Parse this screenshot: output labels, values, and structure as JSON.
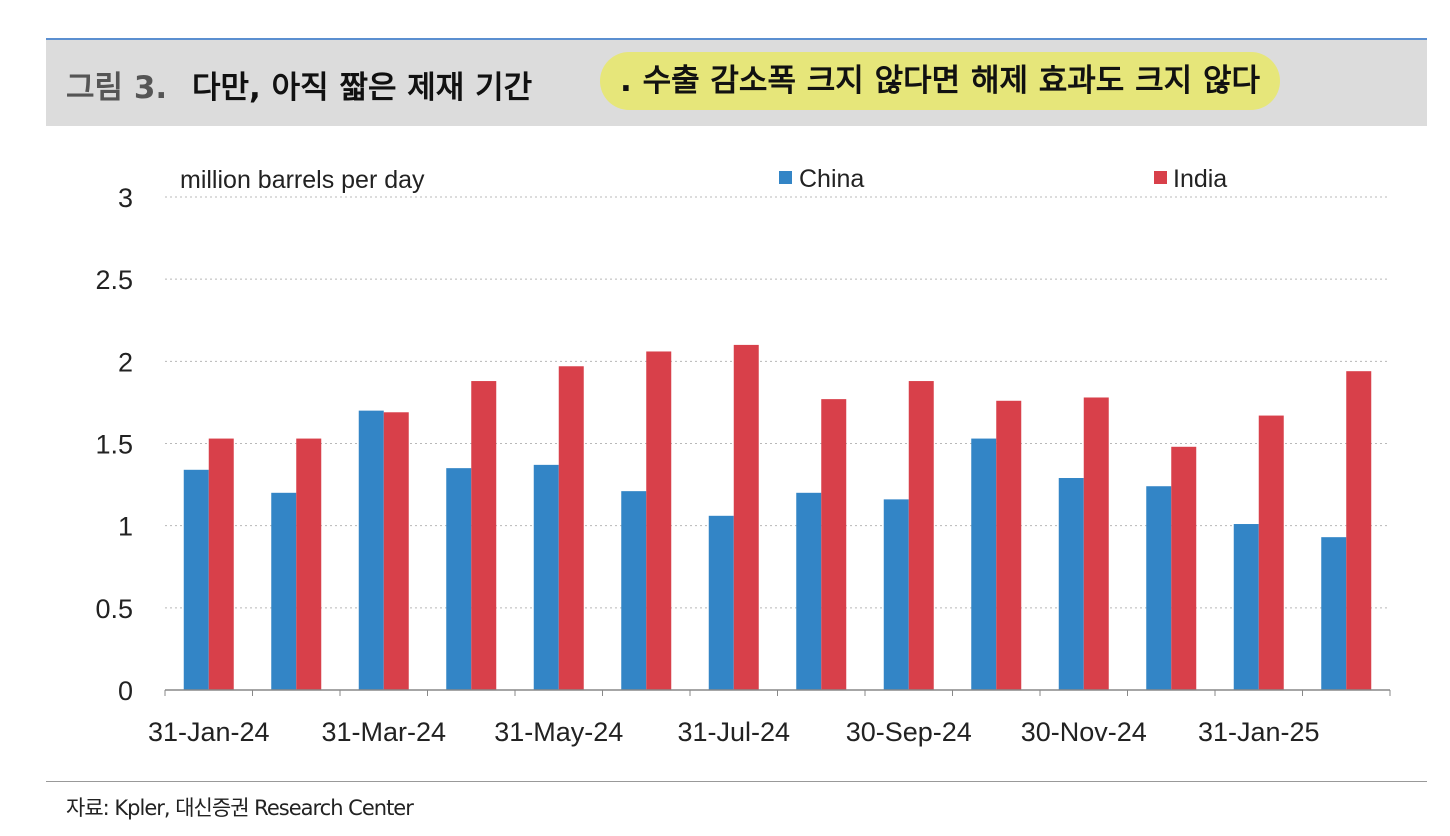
{
  "header": {
    "figure_label": "그림 3.",
    "title": "다만, 아직 짧은 제재 기간",
    "highlight": ". 수출 감소폭 크지 않다면 해제 효과도 크지 않다"
  },
  "source": "자료: Kpler, 대신증권 Research Center",
  "colors": {
    "china": "#3385c6",
    "india": "#d8404a",
    "highlight": "#e6e67a",
    "header_bg": "#dcdcdc"
  },
  "chart_data": {
    "type": "bar",
    "title": "",
    "ylabel": "million barrels per day",
    "xlabel": "",
    "ylim": [
      0,
      3
    ],
    "yticks": [
      "0",
      "0.5",
      "1",
      "1.5",
      "2",
      "2.5",
      "3"
    ],
    "grid": true,
    "legend_placement": "top",
    "categories": [
      "Jan-24",
      "Feb-24",
      "Mar-24",
      "Apr-24",
      "May-24",
      "Jun-24",
      "Jul-24",
      "Aug-24",
      "Sep-24",
      "Oct-24",
      "Nov-24",
      "Dec-24",
      "Jan-25",
      "Feb-25"
    ],
    "x_tick_labels": [
      "31-Jan-24",
      "31-Mar-24",
      "31-May-24",
      "31-Jul-24",
      "30-Sep-24",
      "30-Nov-24",
      "31-Jan-25"
    ],
    "series": [
      {
        "name": "China",
        "values": [
          1.34,
          1.2,
          1.7,
          1.35,
          1.37,
          1.21,
          1.06,
          1.2,
          1.16,
          1.53,
          1.29,
          1.24,
          1.01,
          0.93
        ]
      },
      {
        "name": "India",
        "values": [
          1.53,
          1.53,
          1.69,
          1.88,
          1.97,
          2.06,
          2.1,
          1.77,
          1.88,
          1.76,
          1.78,
          1.48,
          1.67,
          1.94
        ]
      }
    ]
  }
}
